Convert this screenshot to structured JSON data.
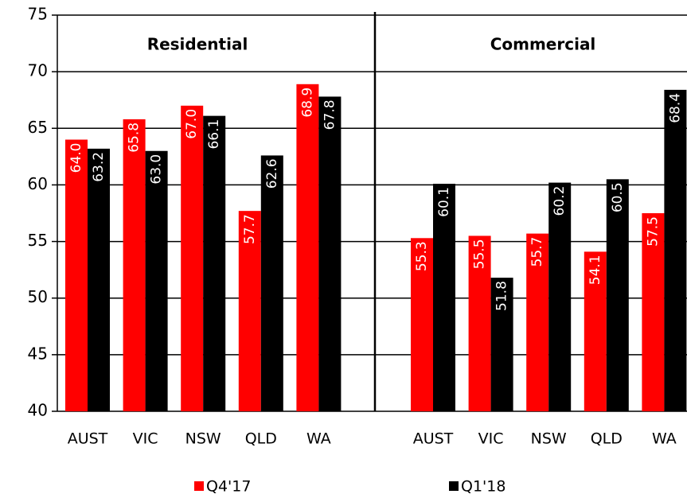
{
  "chart_data": {
    "type": "bar",
    "ylim": [
      40,
      75
    ],
    "yticks": [
      40,
      45,
      50,
      55,
      60,
      65,
      70,
      75
    ],
    "grid": true,
    "panels": [
      {
        "title": "Residential",
        "categories": [
          "AUST",
          "VIC",
          "NSW",
          "QLD",
          "WA"
        ]
      },
      {
        "title": "Commercial",
        "categories": [
          "AUST",
          "VIC",
          "NSW",
          "QLD",
          "WA"
        ]
      }
    ],
    "series": [
      {
        "name": "Q4'17",
        "color": "#ff0000",
        "values": [
          [
            64.0,
            65.8,
            67.0,
            57.7,
            68.9
          ],
          [
            55.3,
            55.5,
            55.7,
            54.1,
            57.5
          ]
        ],
        "value_labels": [
          [
            "64.0",
            "65.8",
            "67.0",
            "57.7",
            "68.9"
          ],
          [
            "55.3",
            "55.5",
            "55.7",
            "54.1",
            "57.5"
          ]
        ]
      },
      {
        "name": "Q1'18",
        "color": "#000000",
        "values": [
          [
            63.2,
            63.0,
            66.1,
            62.6,
            67.8
          ],
          [
            60.1,
            51.8,
            60.2,
            60.5,
            68.4
          ]
        ],
        "value_labels": [
          [
            "63.2",
            "63.0",
            "66.1",
            "62.6",
            "67.8"
          ],
          [
            "60.1",
            "51.8",
            "60.2",
            "60.5",
            "68.4"
          ]
        ]
      }
    ]
  }
}
